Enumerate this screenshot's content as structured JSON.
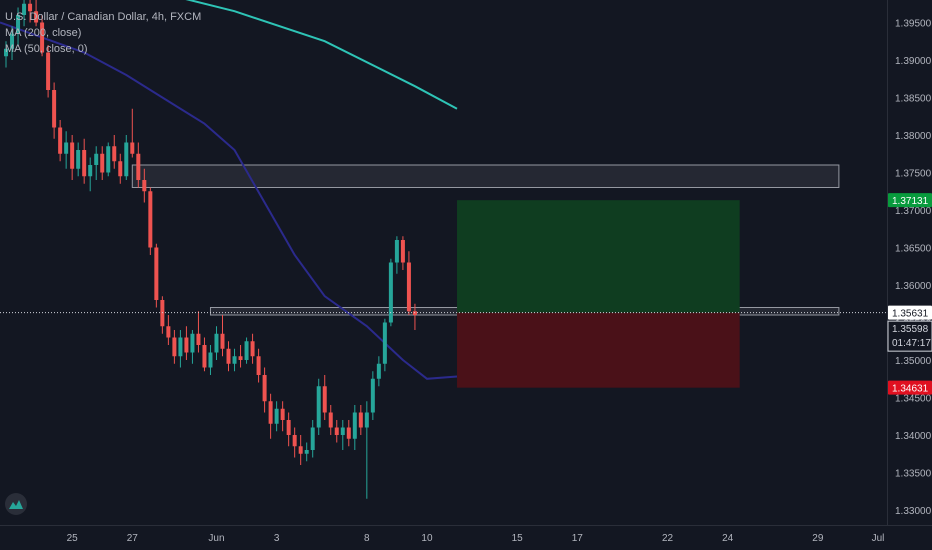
{
  "legend": {
    "symbol": "U.S. Dollar / Canadian Dollar, 4h, FXCM",
    "ma200": "MA (200, close)",
    "ma50": "MA (50, close, 0)"
  },
  "colors": {
    "background": "#131722",
    "up": "#26a69a",
    "down": "#ef5350",
    "ma200": "#2ec4b6",
    "ma50": "#2b2a8c",
    "axis_text": "#b2b5be",
    "grid": "#1e222d",
    "target_zone": "#0f3d20",
    "stop_zone": "#4a1118",
    "price_tag": "#ffffff",
    "take_profit_tag": "#089b3d",
    "stop_loss_tag": "#e01020"
  },
  "chart_data": {
    "type": "candlestick",
    "title": "U.S. Dollar / Canadian Dollar, 4h, FXCM",
    "ylim": [
      1.328,
      1.398
    ],
    "y_ticks": [
      "1.39500",
      "1.39000",
      "1.38500",
      "1.38000",
      "1.37500",
      "1.37000",
      "1.36500",
      "1.36000",
      "1.35500",
      "1.35000",
      "1.34500",
      "1.34000",
      "1.33500",
      "1.33000"
    ],
    "x_ticks": [
      {
        "label": "25",
        "x": 3
      },
      {
        "label": "27",
        "x": 13
      },
      {
        "label": "Jun",
        "x": 27
      },
      {
        "label": "3",
        "x": 37
      },
      {
        "label": "8",
        "x": 52
      },
      {
        "label": "10",
        "x": 62
      },
      {
        "label": "15",
        "x": 77
      },
      {
        "label": "17",
        "x": 87
      },
      {
        "label": "22",
        "x": 102
      },
      {
        "label": "24",
        "x": 112
      },
      {
        "label": "29",
        "x": 127
      },
      {
        "label": "Jul",
        "x": 137
      }
    ],
    "x_range": [
      -9,
      138.5
    ],
    "candles": [
      [
        1.3905,
        1.3925,
        1.389,
        1.3915
      ],
      [
        1.3915,
        1.3945,
        1.39,
        1.3935
      ],
      [
        1.3935,
        1.397,
        1.392,
        1.396
      ],
      [
        1.396,
        1.399,
        1.3945,
        1.3975
      ],
      [
        1.3975,
        1.399,
        1.395,
        1.3965
      ],
      [
        1.3965,
        1.3985,
        1.3945,
        1.395
      ],
      [
        1.395,
        1.396,
        1.3905,
        1.391
      ],
      [
        1.391,
        1.392,
        1.385,
        1.386
      ],
      [
        1.386,
        1.387,
        1.3795,
        1.381
      ],
      [
        1.381,
        1.382,
        1.3765,
        1.3775
      ],
      [
        1.3775,
        1.3805,
        1.3755,
        1.379
      ],
      [
        1.379,
        1.38,
        1.374,
        1.3755
      ],
      [
        1.3755,
        1.379,
        1.3745,
        1.378
      ],
      [
        1.378,
        1.3795,
        1.3735,
        1.3745
      ],
      [
        1.3745,
        1.377,
        1.3725,
        1.376
      ],
      [
        1.376,
        1.3785,
        1.374,
        1.3775
      ],
      [
        1.3775,
        1.3785,
        1.374,
        1.375
      ],
      [
        1.375,
        1.379,
        1.3745,
        1.3785
      ],
      [
        1.3785,
        1.38,
        1.3755,
        1.3765
      ],
      [
        1.3765,
        1.3775,
        1.3735,
        1.3745
      ],
      [
        1.3745,
        1.38,
        1.374,
        1.379
      ],
      [
        1.379,
        1.3835,
        1.377,
        1.3775
      ],
      [
        1.3775,
        1.379,
        1.373,
        1.374
      ],
      [
        1.374,
        1.3755,
        1.371,
        1.3725
      ],
      [
        1.3725,
        1.373,
        1.364,
        1.365
      ],
      [
        1.365,
        1.3655,
        1.357,
        1.358
      ],
      [
        1.358,
        1.3585,
        1.3535,
        1.3545
      ],
      [
        1.3545,
        1.356,
        1.352,
        1.353
      ],
      [
        1.353,
        1.354,
        1.3495,
        1.3505
      ],
      [
        1.3505,
        1.354,
        1.349,
        1.353
      ],
      [
        1.353,
        1.3545,
        1.35,
        1.351
      ],
      [
        1.351,
        1.354,
        1.3495,
        1.3535
      ],
      [
        1.3535,
        1.3565,
        1.351,
        1.352
      ],
      [
        1.352,
        1.353,
        1.3485,
        1.349
      ],
      [
        1.349,
        1.352,
        1.348,
        1.351
      ],
      [
        1.351,
        1.3545,
        1.35,
        1.3535
      ],
      [
        1.3535,
        1.356,
        1.3505,
        1.3515
      ],
      [
        1.3515,
        1.3525,
        1.3485,
        1.3495
      ],
      [
        1.3495,
        1.3515,
        1.3485,
        1.3505
      ],
      [
        1.3505,
        1.352,
        1.349,
        1.35
      ],
      [
        1.35,
        1.353,
        1.3495,
        1.3525
      ],
      [
        1.3525,
        1.3535,
        1.3495,
        1.3505
      ],
      [
        1.3505,
        1.3515,
        1.347,
        1.348
      ],
      [
        1.348,
        1.349,
        1.343,
        1.3445
      ],
      [
        1.3445,
        1.3455,
        1.3395,
        1.3415
      ],
      [
        1.3415,
        1.3445,
        1.3405,
        1.3435
      ],
      [
        1.3435,
        1.3445,
        1.3405,
        1.342
      ],
      [
        1.342,
        1.343,
        1.3385,
        1.34
      ],
      [
        1.34,
        1.341,
        1.337,
        1.3385
      ],
      [
        1.3385,
        1.34,
        1.336,
        1.3375
      ],
      [
        1.3375,
        1.339,
        1.3365,
        1.338
      ],
      [
        1.338,
        1.342,
        1.337,
        1.341
      ],
      [
        1.341,
        1.3475,
        1.34,
        1.3465
      ],
      [
        1.3465,
        1.348,
        1.342,
        1.343
      ],
      [
        1.343,
        1.344,
        1.34,
        1.341
      ],
      [
        1.341,
        1.342,
        1.339,
        1.34
      ],
      [
        1.34,
        1.342,
        1.338,
        1.341
      ],
      [
        1.341,
        1.342,
        1.3385,
        1.3395
      ],
      [
        1.3395,
        1.344,
        1.338,
        1.343
      ],
      [
        1.343,
        1.344,
        1.34,
        1.341
      ],
      [
        1.341,
        1.3445,
        1.3315,
        1.343
      ],
      [
        1.343,
        1.3485,
        1.342,
        1.3475
      ],
      [
        1.3475,
        1.3505,
        1.3465,
        1.3495
      ],
      [
        1.3495,
        1.3555,
        1.3485,
        1.355
      ],
      [
        1.355,
        1.3635,
        1.3545,
        1.363
      ],
      [
        1.363,
        1.3665,
        1.3615,
        1.366
      ],
      [
        1.366,
        1.3665,
        1.362,
        1.363
      ],
      [
        1.363,
        1.3645,
        1.356,
        1.3565
      ],
      [
        1.3565,
        1.3575,
        1.354,
        1.356
      ]
    ],
    "first_candle_x": -8,
    "ma200": {
      "x": [
        15,
        30,
        45,
        60,
        67
      ],
      "y": [
        1.3995,
        1.3965,
        1.3925,
        1.3865,
        1.3835
      ]
    },
    "ma50": {
      "x": [
        -9,
        5,
        12,
        20,
        25,
        30,
        35,
        40,
        45,
        52,
        58,
        62,
        67
      ],
      "y": [
        1.395,
        1.391,
        1.388,
        1.384,
        1.3815,
        1.378,
        1.371,
        1.364,
        1.3585,
        1.3545,
        1.35,
        1.3475,
        1.3478
      ]
    },
    "zones": [
      {
        "type": "supply",
        "x0": 13,
        "x1": 130.5,
        "y0": 1.376,
        "y1": 1.373
      },
      {
        "type": "support",
        "x0": 26,
        "x1": 130.5,
        "y0": 1.357,
        "y1": 1.356
      }
    ],
    "position": {
      "x0": 67,
      "x1": 114,
      "entry": 1.35631,
      "target": 1.37131,
      "stop": 1.34631
    },
    "last_price": 1.35598,
    "countdown": "01:47:17",
    "tags": {
      "target": "1.37131",
      "entry": "1.35631",
      "last": "1.35598",
      "stop": "1.34631"
    }
  }
}
